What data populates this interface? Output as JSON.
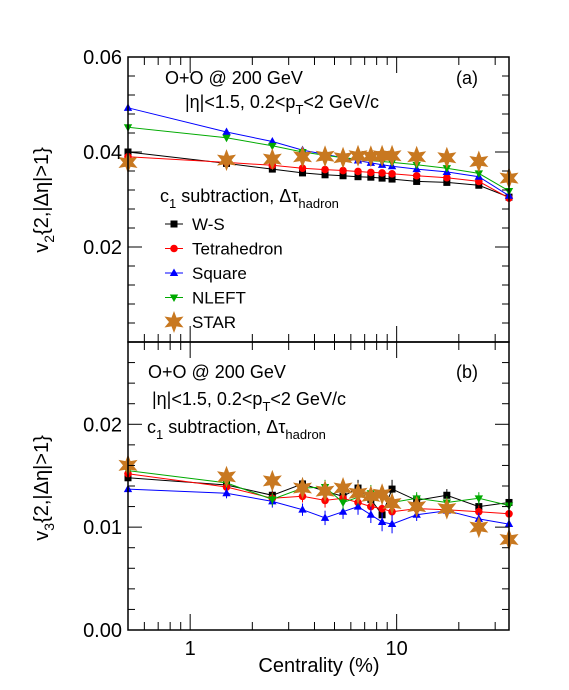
{
  "chart_data": [
    {
      "panel_label": "(a)",
      "type": "scatter",
      "x_scale": "log",
      "xlim": [
        0.5,
        35
      ],
      "ylim": [
        0,
        0.06
      ],
      "yticks": [
        0,
        0.02,
        0.04,
        0.06
      ],
      "ytick_labels": [
        "",
        "0.02",
        "0.04",
        "0.06"
      ],
      "ylabel_main": "v",
      "ylabel_sub": "2",
      "ylabel_rest": "{2,|Δη|>1}",
      "annotations": {
        "system": "O+O @ 200 GeV",
        "cut_pre": "|η|<1.5, 0.2<p",
        "cut_sub": "T",
        "cut_post": "<2 GeV/c",
        "method_pre": "c",
        "method_sub": "1",
        "method_mid": " subtraction, Δτ",
        "method_sub2": "hadron"
      },
      "series": [
        {
          "name": "W-S",
          "color": "#000000",
          "marker": "square",
          "x": [
            0.5,
            1.5,
            2.5,
            3.5,
            4.5,
            5.5,
            6.5,
            7.5,
            8.5,
            9.5,
            12.5,
            17.5,
            25,
            35
          ],
          "y": [
            0.04,
            0.0376,
            0.0364,
            0.0356,
            0.0352,
            0.035,
            0.0348,
            0.0347,
            0.0345,
            0.0343,
            0.0338,
            0.0336,
            0.033,
            0.0305
          ]
        },
        {
          "name": "Tetrahedron",
          "color": "#ff0000",
          "marker": "circle",
          "x": [
            0.5,
            1.5,
            2.5,
            3.5,
            4.5,
            5.5,
            6.5,
            7.5,
            8.5,
            9.5,
            12.5,
            17.5,
            25,
            35
          ],
          "y": [
            0.039,
            0.0378,
            0.0372,
            0.0366,
            0.0363,
            0.0361,
            0.0359,
            0.0357,
            0.0356,
            0.0354,
            0.035,
            0.0346,
            0.0338,
            0.0303
          ]
        },
        {
          "name": "Square",
          "color": "#0000ff",
          "marker": "triangle-up",
          "x": [
            0.5,
            1.5,
            2.5,
            3.5,
            4.5,
            5.5,
            6.5,
            7.5,
            8.5,
            9.5,
            12.5,
            17.5,
            25,
            35
          ],
          "y": [
            0.0493,
            0.0442,
            0.0422,
            0.0404,
            0.0395,
            0.0388,
            0.0382,
            0.0377,
            0.0373,
            0.037,
            0.0364,
            0.0358,
            0.0348,
            0.0308
          ]
        },
        {
          "name": "NLEFT",
          "color": "#00aa00",
          "marker": "triangle-down",
          "x": [
            0.5,
            1.5,
            2.5,
            3.5,
            4.5,
            5.5,
            6.5,
            7.5,
            8.5,
            9.5,
            12.5,
            17.5,
            25,
            35
          ],
          "y": [
            0.0452,
            0.043,
            0.0413,
            0.04,
            0.0393,
            0.0388,
            0.0385,
            0.0382,
            0.038,
            0.0378,
            0.0373,
            0.0366,
            0.0355,
            0.0318
          ]
        },
        {
          "name": "STAR",
          "color": "#c87820",
          "marker": "star",
          "x": [
            0.5,
            1.5,
            2.5,
            3.5,
            4.5,
            5.5,
            6.5,
            7.5,
            8.5,
            9.5,
            12.5,
            17.5,
            25,
            35
          ],
          "y": [
            0.0378,
            0.0383,
            0.0385,
            0.039,
            0.0391,
            0.0388,
            0.0392,
            0.0391,
            0.0392,
            0.0392,
            0.039,
            0.0388,
            0.038,
            0.0345
          ]
        }
      ],
      "legend": {
        "placement": "lower-left",
        "entries": [
          "W-S",
          "Tetrahedron",
          "Square",
          "NLEFT",
          "STAR"
        ]
      }
    },
    {
      "panel_label": "(b)",
      "type": "scatter",
      "x_scale": "log",
      "xlim": [
        0.5,
        35
      ],
      "ylim": [
        0,
        0.028
      ],
      "yticks": [
        0,
        0.01,
        0.02
      ],
      "ytick_labels": [
        "0.00",
        "0.01",
        "0.02"
      ],
      "xticks": [
        1,
        10
      ],
      "xtick_labels": [
        "1",
        "10"
      ],
      "xlabel": "Centrality (%)",
      "ylabel_main": "v",
      "ylabel_sub": "3",
      "ylabel_rest": "{2,|Δη|>1}",
      "annotations": {
        "system": "O+O @ 200 GeV",
        "cut_pre": "|η|<1.5, 0.2<p",
        "cut_sub": "T",
        "cut_post": "<2 GeV/c",
        "method_pre": "c",
        "method_sub": "1",
        "method_mid": " subtraction, Δτ",
        "method_sub2": "hadron"
      },
      "series": [
        {
          "name": "W-S",
          "color": "#000000",
          "marker": "square",
          "x": [
            0.5,
            1.5,
            2.5,
            3.5,
            4.5,
            5.5,
            6.5,
            7.5,
            8.5,
            9.5,
            12.5,
            17.5,
            25,
            35
          ],
          "y": [
            0.0148,
            0.0141,
            0.0131,
            0.0142,
            0.0135,
            0.013,
            0.0138,
            0.0127,
            0.0112,
            0.0137,
            0.0126,
            0.0131,
            0.012,
            0.0124
          ],
          "err": [
            0.0005,
            0.0005,
            0.0006,
            0.0006,
            0.0007,
            0.0007,
            0.0008,
            0.0008,
            0.0009,
            0.0009,
            0.0006,
            0.0006,
            0.0006,
            0.0007
          ]
        },
        {
          "name": "Tetrahedron",
          "color": "#ff0000",
          "marker": "circle",
          "x": [
            0.5,
            1.5,
            2.5,
            3.5,
            4.5,
            5.5,
            6.5,
            7.5,
            8.5,
            9.5,
            12.5,
            17.5,
            25,
            35
          ],
          "y": [
            0.0152,
            0.0139,
            0.0128,
            0.013,
            0.0126,
            0.0128,
            0.0124,
            0.012,
            0.0118,
            0.0115,
            0.0118,
            0.0117,
            0.0115,
            0.0113
          ],
          "err": [
            0.0005,
            0.0005,
            0.0006,
            0.0006,
            0.0007,
            0.0007,
            0.0008,
            0.0008,
            0.0009,
            0.0009,
            0.0006,
            0.0006,
            0.0006,
            0.0007
          ]
        },
        {
          "name": "Square",
          "color": "#0000ff",
          "marker": "triangle-up",
          "x": [
            0.5,
            1.5,
            2.5,
            3.5,
            4.5,
            5.5,
            6.5,
            7.5,
            8.5,
            9.5,
            12.5,
            17.5,
            25,
            35
          ],
          "y": [
            0.0137,
            0.0133,
            0.0125,
            0.0117,
            0.0109,
            0.0115,
            0.012,
            0.0112,
            0.0105,
            0.0103,
            0.0112,
            0.0116,
            0.0108,
            0.0103
          ],
          "err": [
            0.0005,
            0.0005,
            0.0006,
            0.0006,
            0.0007,
            0.0007,
            0.0008,
            0.0008,
            0.0009,
            0.0009,
            0.0006,
            0.0006,
            0.0006,
            0.0007
          ]
        },
        {
          "name": "NLEFT",
          "color": "#00aa00",
          "marker": "triangle-down",
          "x": [
            0.5,
            1.5,
            2.5,
            3.5,
            4.5,
            5.5,
            6.5,
            7.5,
            8.5,
            9.5,
            12.5,
            17.5,
            25,
            35
          ],
          "y": [
            0.0155,
            0.0143,
            0.0127,
            0.0138,
            0.0139,
            0.0124,
            0.0129,
            0.0133,
            0.0131,
            0.0124,
            0.0128,
            0.0124,
            0.0128,
            0.0121
          ],
          "err": [
            0.0005,
            0.0005,
            0.0006,
            0.0006,
            0.0007,
            0.0007,
            0.0008,
            0.0008,
            0.0009,
            0.0009,
            0.0006,
            0.0006,
            0.0006,
            0.0007
          ]
        },
        {
          "name": "STAR",
          "color": "#c87820",
          "marker": "star",
          "x": [
            0.5,
            1.5,
            2.5,
            3.5,
            4.5,
            5.5,
            6.5,
            7.5,
            8.5,
            9.5,
            12.5,
            17.5,
            25,
            35
          ],
          "y": [
            0.016,
            0.0149,
            0.0145,
            0.0138,
            0.0135,
            0.0138,
            0.0133,
            0.013,
            0.0132,
            0.0123,
            0.012,
            0.0118,
            0.01,
            0.0088
          ]
        }
      ]
    }
  ]
}
